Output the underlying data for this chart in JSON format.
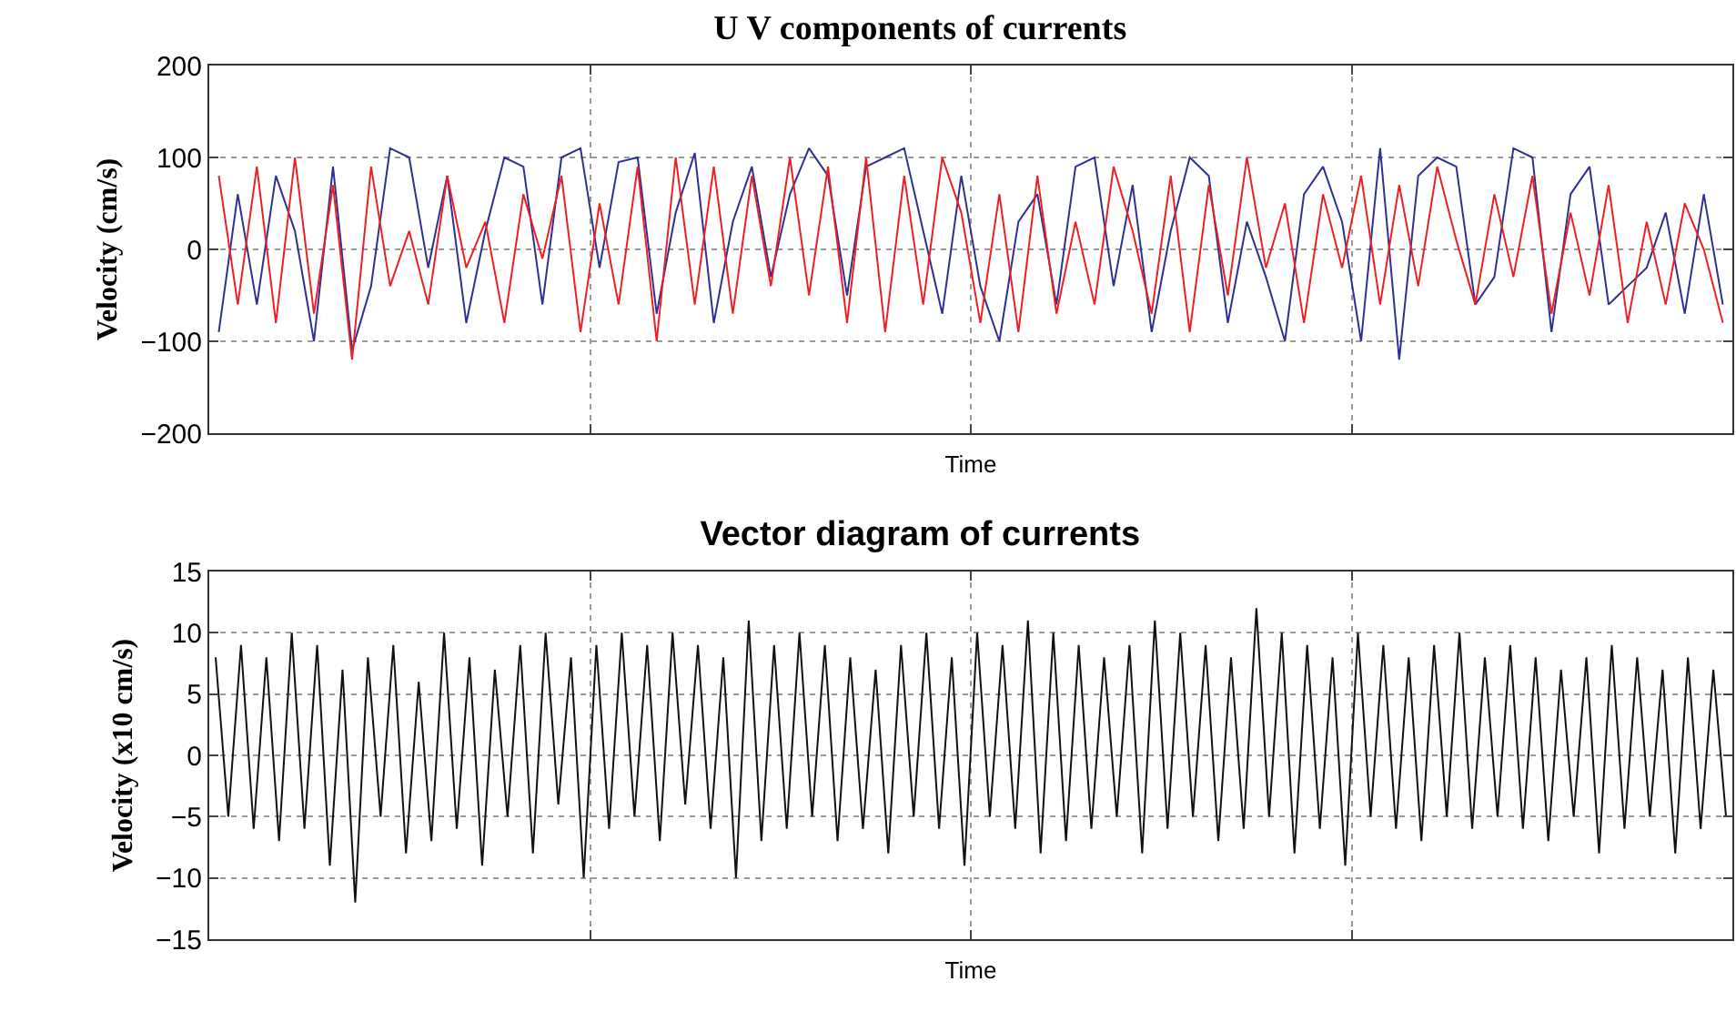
{
  "chart_data": [
    {
      "type": "line",
      "title": "U V components of currents",
      "xlabel": "Time",
      "ylabel": "Velocity (cm/s)",
      "ylim": [
        -200,
        200
      ],
      "yticks": [
        -200,
        -100,
        0,
        100,
        200
      ],
      "grid": true,
      "tick_labels": "y",
      "categories": [
        null,
        null,
        null,
        null,
        null,
        null,
        null,
        null,
        null,
        null,
        null,
        null,
        null,
        null,
        null,
        null,
        null,
        null,
        null,
        null,
        null,
        null,
        null,
        null,
        null,
        null,
        null,
        null,
        null,
        null,
        null,
        null,
        null,
        null,
        null,
        null,
        null,
        null,
        null,
        null,
        null,
        null,
        null,
        null,
        null,
        null,
        null,
        null,
        null,
        null,
        null,
        null,
        null,
        null,
        null,
        null,
        null,
        null,
        null,
        null,
        null,
        null,
        null,
        null,
        null,
        null,
        null,
        null,
        null,
        null,
        null,
        null,
        null,
        null,
        null,
        null,
        null,
        null,
        null,
        null
      ],
      "series": [
        {
          "color": "#2e3192",
          "values": [
            -90,
            60,
            -60,
            80,
            20,
            -100,
            90,
            -110,
            -40,
            110,
            100,
            -20,
            80,
            -80,
            20,
            100,
            90,
            -60,
            100,
            110,
            -20,
            95,
            100,
            -70,
            40,
            105,
            -80,
            30,
            90,
            -30,
            60,
            110,
            80,
            -50,
            90,
            100,
            110,
            20,
            -70,
            80,
            -40,
            -100,
            30,
            60,
            -60,
            90,
            100,
            -40,
            70,
            -90,
            20,
            100,
            80,
            -80,
            30,
            -30,
            -100,
            60,
            90,
            30,
            -100,
            110,
            -120,
            80,
            100,
            90,
            -60,
            -30,
            110,
            100,
            -90,
            60,
            90,
            -60,
            -40,
            -20,
            40,
            -70,
            60,
            -60
          ]
        },
        {
          "color": "#ed2024",
          "values": [
            80,
            -60,
            90,
            -80,
            100,
            -70,
            70,
            -120,
            90,
            -40,
            20,
            -60,
            80,
            -20,
            30,
            -80,
            60,
            -10,
            80,
            -90,
            50,
            -60,
            90,
            -100,
            100,
            -60,
            90,
            -70,
            80,
            -40,
            100,
            -50,
            90,
            -80,
            100,
            -90,
            80,
            -60,
            100,
            40,
            -80,
            60,
            -90,
            80,
            -70,
            30,
            -60,
            90,
            20,
            -70,
            80,
            -90,
            70,
            -50,
            100,
            -20,
            50,
            -80,
            60,
            -20,
            80,
            -60,
            70,
            -40,
            90,
            10,
            -60,
            60,
            -30,
            80,
            -70,
            40,
            -50,
            70,
            -80,
            30,
            -60,
            50,
            0,
            -80
          ]
        }
      ]
    },
    {
      "type": "line",
      "title": "Vector diagram of currents",
      "xlabel": "Time",
      "ylabel": "Velocity (x10 cm/s)",
      "ylim": [
        -15,
        15
      ],
      "yticks": [
        -15,
        -10,
        -5,
        0,
        5,
        10,
        15
      ],
      "grid": true,
      "tick_labels": "y",
      "categories": [
        null,
        null,
        null,
        null,
        null,
        null,
        null,
        null,
        null,
        null,
        null,
        null,
        null,
        null,
        null,
        null,
        null,
        null,
        null,
        null,
        null,
        null,
        null,
        null,
        null,
        null,
        null,
        null,
        null,
        null,
        null,
        null,
        null,
        null,
        null,
        null,
        null,
        null,
        null,
        null,
        null,
        null,
        null,
        null,
        null,
        null,
        null,
        null,
        null,
        null,
        null,
        null,
        null,
        null,
        null,
        null,
        null,
        null,
        null,
        null,
        null,
        null,
        null,
        null,
        null,
        null,
        null,
        null,
        null,
        null,
        null,
        null,
        null,
        null,
        null,
        null,
        null,
        null,
        null,
        null,
        null,
        null,
        null,
        null,
        null,
        null,
        null,
        null,
        null,
        null,
        null,
        null,
        null,
        null,
        null,
        null,
        null,
        null,
        null,
        null,
        null,
        null,
        null,
        null,
        null,
        null,
        null,
        null,
        null,
        null,
        null,
        null,
        null,
        null,
        null,
        null,
        null,
        null,
        null,
        null
      ],
      "series": [
        {
          "color": "#111111",
          "values": [
            8,
            -5,
            9,
            -6,
            8,
            -7,
            10,
            -6,
            9,
            -9,
            7,
            -12,
            8,
            -5,
            9,
            -8,
            6,
            -7,
            10,
            -6,
            8,
            -9,
            7,
            -5,
            9,
            -8,
            10,
            -4,
            8,
            -10,
            9,
            -6,
            10,
            -5,
            9,
            -7,
            10,
            -4,
            9,
            -6,
            8,
            -10,
            11,
            -7,
            9,
            -6,
            10,
            -5,
            9,
            -7,
            8,
            -6,
            7,
            -8,
            9,
            -5,
            10,
            -6,
            8,
            -9,
            10,
            -5,
            9,
            -6,
            11,
            -8,
            10,
            -7,
            9,
            -6,
            8,
            -5,
            9,
            -8,
            11,
            -6,
            10,
            -5,
            9,
            -7,
            8,
            -6,
            12,
            -5,
            10,
            -8,
            9,
            -6,
            8,
            -9,
            10,
            -5,
            9,
            -6,
            8,
            -7,
            9,
            -5,
            10,
            -6,
            8,
            -5,
            9,
            -6,
            8,
            -7,
            7,
            -5,
            8,
            -8,
            9,
            -6,
            8,
            -5,
            7,
            -8,
            8,
            -6,
            7,
            -5
          ]
        }
      ]
    }
  ]
}
